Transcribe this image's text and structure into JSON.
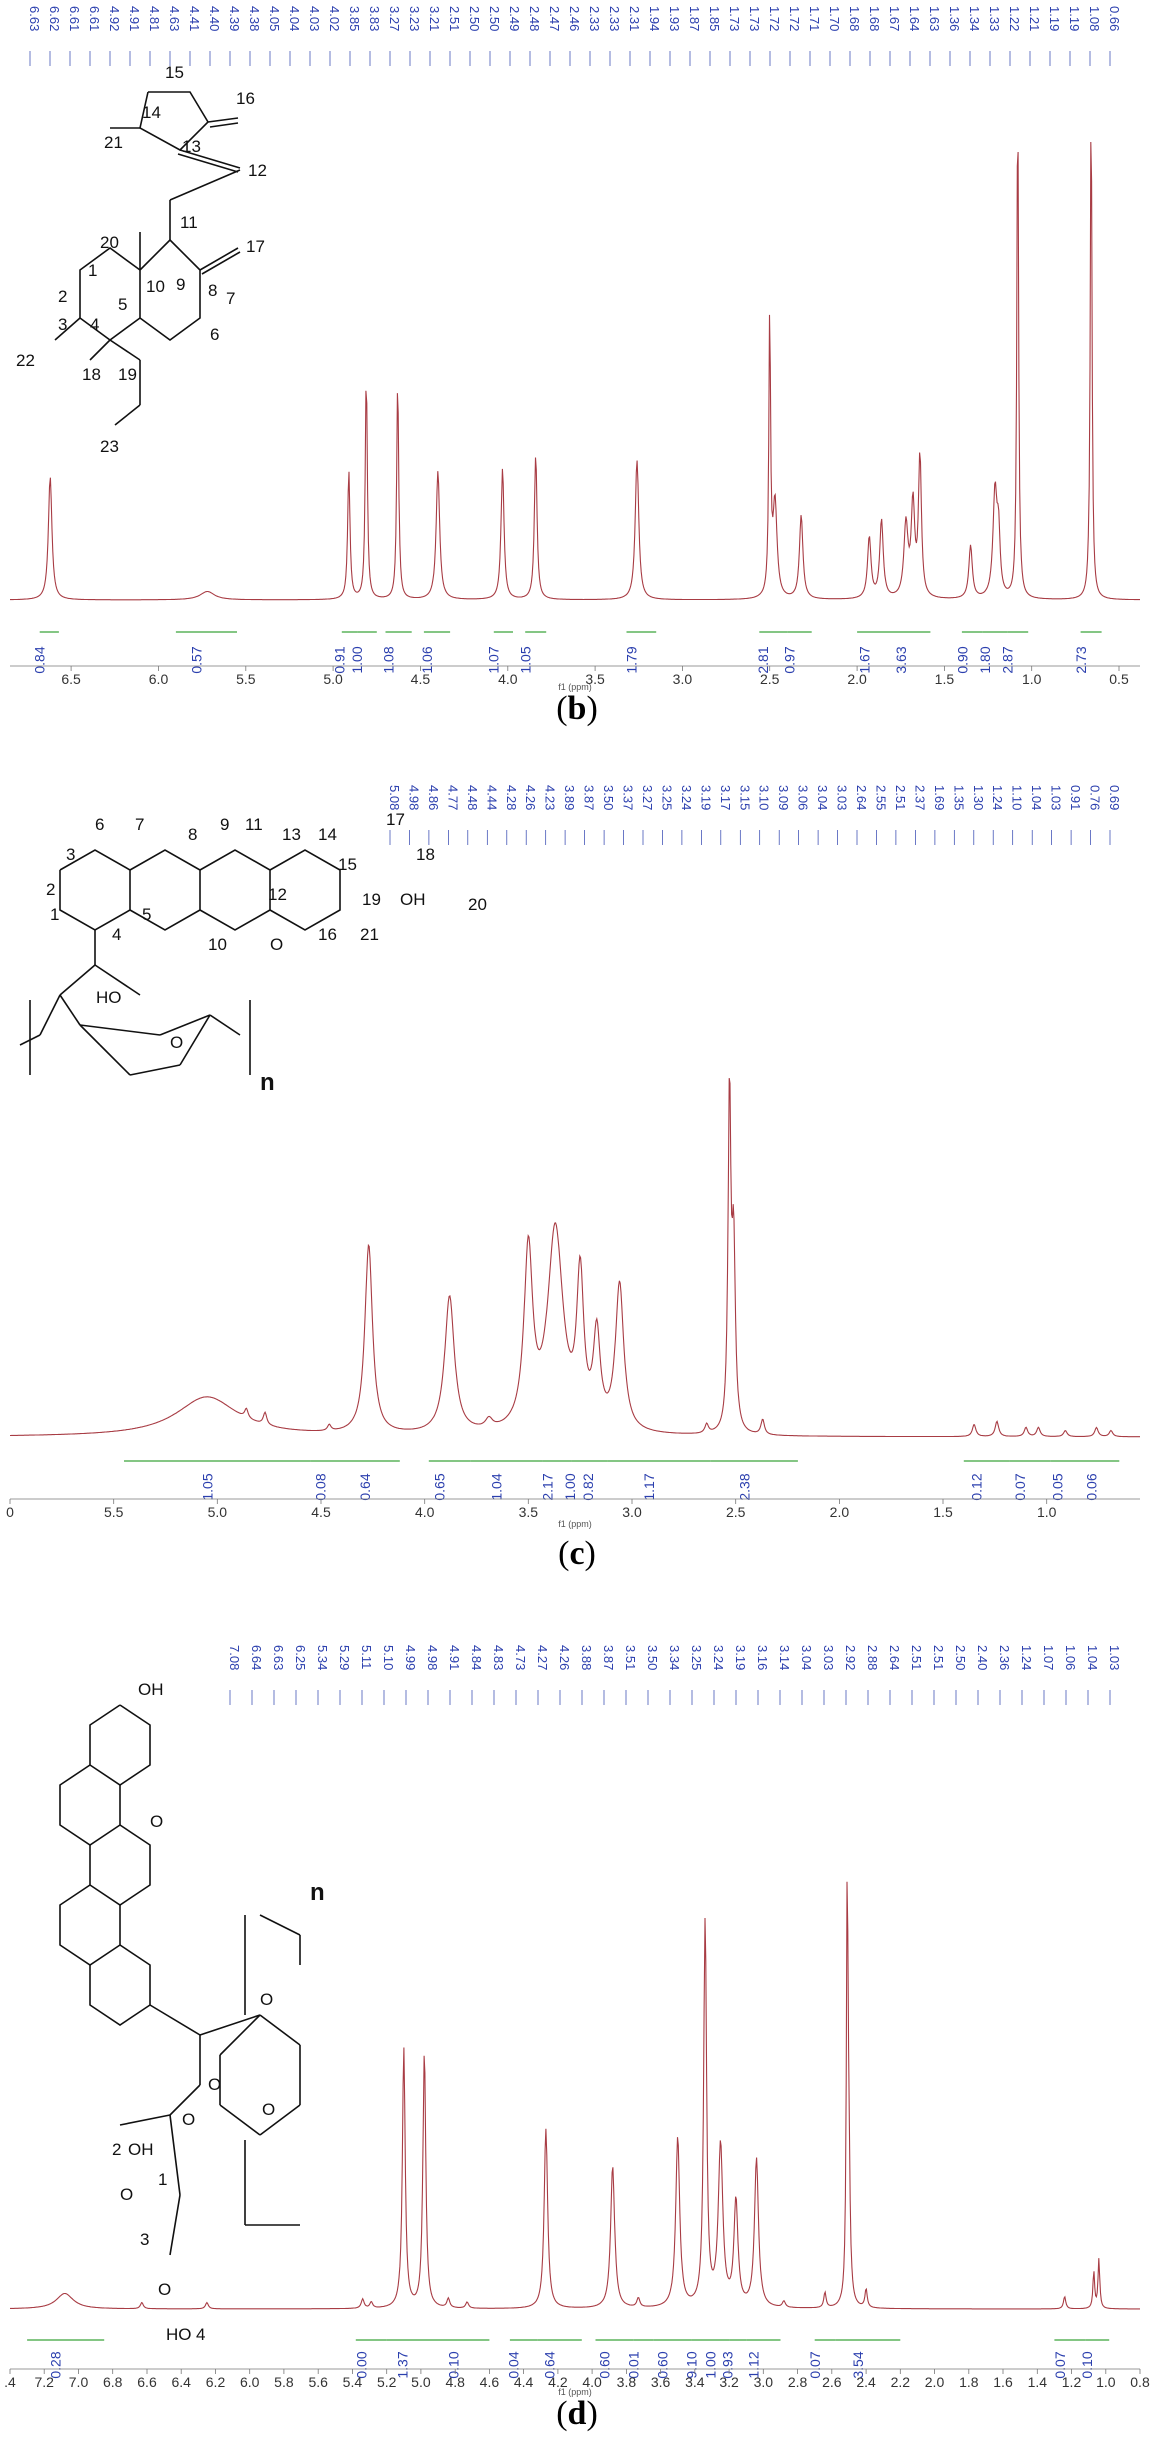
{
  "chart_data": [
    {
      "type": "line",
      "panel": "b",
      "caption_label": "b",
      "xlabel": "f1 (ppm)",
      "xlim": [
        6.85,
        0.38
      ],
      "x_ticks": [
        "6.5",
        "6.0",
        "5.5",
        "5.0",
        "4.5",
        "4.0",
        "3.5",
        "3.0",
        "2.5",
        "2.0",
        "1.5",
        "1.0",
        "0.5"
      ],
      "x_tick_values": [
        6.5,
        6.0,
        5.5,
        5.0,
        4.5,
        4.0,
        3.5,
        3.0,
        2.5,
        2.0,
        1.5,
        1.0,
        0.5
      ],
      "peak_labels": [
        "6.63",
        "6.62",
        "6.61",
        "6.61",
        "4.92",
        "4.91",
        "4.81",
        "4.63",
        "4.41",
        "4.40",
        "4.39",
        "4.38",
        "4.05",
        "4.04",
        "4.03",
        "4.02",
        "3.85",
        "3.83",
        "3.27",
        "3.23",
        "3.21",
        "2.51",
        "2.50",
        "2.50",
        "2.49",
        "2.48",
        "2.47",
        "2.46",
        "2.33",
        "2.33",
        "2.31",
        "1.94",
        "1.93",
        "1.87",
        "1.85",
        "1.73",
        "1.73",
        "1.72",
        "1.72",
        "1.71",
        "1.70",
        "1.68",
        "1.68",
        "1.67",
        "1.64",
        "1.63",
        "1.36",
        "1.34",
        "1.33",
        "1.22",
        "1.21",
        "1.19",
        "1.19",
        "1.08",
        "0.66"
      ],
      "peaks": [
        {
          "ppm": 6.62,
          "h": 0.44,
          "w": 0.012
        },
        {
          "ppm": 5.72,
          "h": 0.03,
          "w": 0.05
        },
        {
          "ppm": 4.91,
          "h": 0.46,
          "w": 0.008
        },
        {
          "ppm": 4.81,
          "h": 0.8,
          "w": 0.007
        },
        {
          "ppm": 4.63,
          "h": 0.78,
          "w": 0.007
        },
        {
          "ppm": 4.4,
          "h": 0.46,
          "w": 0.012
        },
        {
          "ppm": 4.03,
          "h": 0.47,
          "w": 0.01
        },
        {
          "ppm": 3.84,
          "h": 0.52,
          "w": 0.009
        },
        {
          "ppm": 3.26,
          "h": 0.5,
          "w": 0.012
        },
        {
          "ppm": 2.5,
          "h": 1.0,
          "w": 0.006
        },
        {
          "ppm": 2.47,
          "h": 0.34,
          "w": 0.014
        },
        {
          "ppm": 2.32,
          "h": 0.3,
          "w": 0.012
        },
        {
          "ppm": 1.93,
          "h": 0.22,
          "w": 0.012
        },
        {
          "ppm": 1.86,
          "h": 0.28,
          "w": 0.012
        },
        {
          "ppm": 1.72,
          "h": 0.26,
          "w": 0.014
        },
        {
          "ppm": 1.68,
          "h": 0.33,
          "w": 0.012
        },
        {
          "ppm": 1.64,
          "h": 0.5,
          "w": 0.01
        },
        {
          "ppm": 1.35,
          "h": 0.19,
          "w": 0.012
        },
        {
          "ppm": 1.21,
          "h": 0.38,
          "w": 0.014
        },
        {
          "ppm": 1.19,
          "h": 0.2,
          "w": 0.01
        },
        {
          "ppm": 1.08,
          "h": 1.8,
          "w": 0.006
        },
        {
          "ppm": 0.66,
          "h": 1.8,
          "w": 0.006
        }
      ],
      "integrals": [
        {
          "from": 6.68,
          "to": 6.57,
          "value": "0.84"
        },
        {
          "from": 5.9,
          "to": 5.55,
          "value": "0.57"
        },
        {
          "from": 4.95,
          "to": 4.86,
          "value": "0.91"
        },
        {
          "from": 4.86,
          "to": 4.75,
          "value": "1.00"
        },
        {
          "from": 4.7,
          "to": 4.55,
          "value": "1.08"
        },
        {
          "from": 4.48,
          "to": 4.33,
          "value": "1.06"
        },
        {
          "from": 4.08,
          "to": 3.97,
          "value": "1.07"
        },
        {
          "from": 3.9,
          "to": 3.78,
          "value": "1.05"
        },
        {
          "from": 3.32,
          "to": 3.15,
          "value": "1.79"
        },
        {
          "from": 2.56,
          "to": 2.4,
          "value": "2.81"
        },
        {
          "from": 2.4,
          "to": 2.26,
          "value": "0.97"
        },
        {
          "from": 2.0,
          "to": 1.8,
          "value": "1.67"
        },
        {
          "from": 1.8,
          "to": 1.58,
          "value": "3.63"
        },
        {
          "from": 1.4,
          "to": 1.28,
          "value": "0.90"
        },
        {
          "from": 1.28,
          "to": 1.14,
          "value": "1.80"
        },
        {
          "from": 1.14,
          "to": 1.02,
          "value": "2.87"
        },
        {
          "from": 0.72,
          "to": 0.6,
          "value": "2.73"
        }
      ],
      "structure_labels": [
        "15",
        "16",
        "14",
        "13",
        "12",
        "11",
        "20",
        "9",
        "8",
        "17",
        "10",
        "1",
        "2",
        "3",
        "4",
        "5",
        "6",
        "7",
        "18",
        "19",
        "22",
        "23",
        "21"
      ]
    },
    {
      "type": "line",
      "panel": "c",
      "caption_label": "c",
      "xlabel": "f1 (ppm)",
      "xlim": [
        6.0,
        0.55
      ],
      "x_ticks": [
        "0",
        "5.5",
        "5.0",
        "4.5",
        "4.0",
        "3.5",
        "3.0",
        "2.5",
        "2.0",
        "1.5",
        "1.0"
      ],
      "x_tick_values": [
        6.0,
        5.5,
        5.0,
        4.5,
        4.0,
        3.5,
        3.0,
        2.5,
        2.0,
        1.5,
        1.0
      ],
      "peak_labels": [
        "5.08",
        "4.98",
        "4.86",
        "4.77",
        "4.48",
        "4.44",
        "4.28",
        "4.26",
        "4.23",
        "3.89",
        "3.87",
        "3.50",
        "3.37",
        "3.27",
        "3.25",
        "3.24",
        "3.19",
        "3.17",
        "3.15",
        "3.10",
        "3.09",
        "3.06",
        "3.04",
        "3.03",
        "2.64",
        "2.55",
        "2.51",
        "2.37",
        "1.69",
        "1.35",
        "1.30",
        "1.24",
        "1.10",
        "1.04",
        "1.03",
        "0.91",
        "0.76",
        "0.69"
      ],
      "peaks": [
        {
          "ppm": 5.05,
          "h": 0.13,
          "w": 0.18
        },
        {
          "ppm": 4.86,
          "h": 0.03,
          "w": 0.01
        },
        {
          "ppm": 4.77,
          "h": 0.04,
          "w": 0.01
        },
        {
          "ppm": 4.46,
          "h": 0.02,
          "w": 0.01
        },
        {
          "ppm": 4.27,
          "h": 0.62,
          "w": 0.022
        },
        {
          "ppm": 3.88,
          "h": 0.45,
          "w": 0.028
        },
        {
          "ppm": 3.69,
          "h": 0.03,
          "w": 0.02
        },
        {
          "ppm": 3.5,
          "h": 0.58,
          "w": 0.025
        },
        {
          "ppm": 3.37,
          "h": 0.66,
          "w": 0.045
        },
        {
          "ppm": 3.25,
          "h": 0.48,
          "w": 0.02
        },
        {
          "ppm": 3.17,
          "h": 0.3,
          "w": 0.02
        },
        {
          "ppm": 3.06,
          "h": 0.48,
          "w": 0.024
        },
        {
          "ppm": 2.64,
          "h": 0.03,
          "w": 0.01
        },
        {
          "ppm": 2.53,
          "h": 1.1,
          "w": 0.008
        },
        {
          "ppm": 2.51,
          "h": 0.6,
          "w": 0.01
        },
        {
          "ppm": 2.37,
          "h": 0.05,
          "w": 0.01
        },
        {
          "ppm": 1.35,
          "h": 0.04,
          "w": 0.01
        },
        {
          "ppm": 1.24,
          "h": 0.05,
          "w": 0.01
        },
        {
          "ppm": 1.1,
          "h": 0.03,
          "w": 0.01
        },
        {
          "ppm": 1.04,
          "h": 0.03,
          "w": 0.01
        },
        {
          "ppm": 0.91,
          "h": 0.02,
          "w": 0.01
        },
        {
          "ppm": 0.76,
          "h": 0.03,
          "w": 0.01
        },
        {
          "ppm": 0.69,
          "h": 0.02,
          "w": 0.01
        }
      ],
      "integrals": [
        {
          "from": 5.45,
          "to": 4.55,
          "value": "1.05"
        },
        {
          "from": 4.55,
          "to": 4.36,
          "value": "0.08"
        },
        {
          "from": 4.36,
          "to": 4.12,
          "value": "0.64"
        },
        {
          "from": 3.98,
          "to": 3.78,
          "value": "0.65"
        },
        {
          "from": 3.78,
          "to": 3.43,
          "value": "1.04"
        },
        {
          "from": 3.43,
          "to": 3.29,
          "value": "2.17"
        },
        {
          "from": 3.29,
          "to": 3.21,
          "value": "1.00"
        },
        {
          "from": 3.21,
          "to": 3.12,
          "value": "0.82"
        },
        {
          "from": 3.12,
          "to": 2.62,
          "value": "1.17"
        },
        {
          "from": 2.62,
          "to": 2.2,
          "value": "2.38"
        },
        {
          "from": 1.4,
          "to": 1.18,
          "value": "0.12"
        },
        {
          "from": 1.18,
          "to": 0.98,
          "value": "0.07"
        },
        {
          "from": 0.98,
          "to": 0.82,
          "value": "0.05"
        },
        {
          "from": 0.82,
          "to": 0.65,
          "value": "0.06"
        }
      ],
      "structure_labels": [
        "6",
        "7",
        "8",
        "9",
        "11",
        "13",
        "14",
        "17",
        "18",
        "3",
        "15",
        "2",
        "12",
        "19",
        "OH",
        "20",
        "1",
        "5",
        "16",
        "21",
        "4",
        "10",
        "O",
        "HO",
        "O",
        "n"
      ]
    },
    {
      "type": "line",
      "panel": "d",
      "caption_label": "d",
      "xlabel": "f1 (ppm)",
      "xlim": [
        7.4,
        0.8
      ],
      "x_ticks": [
        ".4",
        "7.2",
        "7.0",
        "6.8",
        "6.6",
        "6.4",
        "6.2",
        "6.0",
        "5.8",
        "5.6",
        "5.4",
        "5.2",
        "5.0",
        "4.8",
        "4.6",
        "4.4",
        "4.2",
        "4.0",
        "3.8",
        "3.6",
        "3.4",
        "3.2",
        "3.0",
        "2.8",
        "2.6",
        "2.4",
        "2.2",
        "2.0",
        "1.8",
        "1.6",
        "1.4",
        "1.2",
        "1.0",
        "0.8"
      ],
      "x_tick_values": [
        7.4,
        7.2,
        7.0,
        6.8,
        6.6,
        6.4,
        6.2,
        6.0,
        5.8,
        5.6,
        5.4,
        5.2,
        5.0,
        4.8,
        4.6,
        4.4,
        4.2,
        4.0,
        3.8,
        3.6,
        3.4,
        3.2,
        3.0,
        2.8,
        2.6,
        2.4,
        2.2,
        2.0,
        1.8,
        1.6,
        1.4,
        1.2,
        1.0,
        0.8
      ],
      "peak_labels": [
        "7.08",
        "6.64",
        "6.63",
        "6.25",
        "5.34",
        "5.29",
        "5.11",
        "5.10",
        "4.99",
        "4.98",
        "4.91",
        "4.84",
        "4.83",
        "4.73",
        "4.27",
        "4.26",
        "3.88",
        "3.87",
        "3.51",
        "3.50",
        "3.34",
        "3.25",
        "3.24",
        "3.19",
        "3.16",
        "3.14",
        "3.04",
        "3.03",
        "2.92",
        "2.88",
        "2.64",
        "2.51",
        "2.51",
        "2.50",
        "2.40",
        "2.36",
        "1.24",
        "1.07",
        "1.06",
        "1.04",
        "1.03"
      ],
      "peaks": [
        {
          "ppm": 7.08,
          "h": 0.05,
          "w": 0.06
        },
        {
          "ppm": 6.63,
          "h": 0.02,
          "w": 0.01
        },
        {
          "ppm": 6.25,
          "h": 0.02,
          "w": 0.01
        },
        {
          "ppm": 5.34,
          "h": 0.03,
          "w": 0.01
        },
        {
          "ppm": 5.29,
          "h": 0.02,
          "w": 0.01
        },
        {
          "ppm": 5.1,
          "h": 0.84,
          "w": 0.01
        },
        {
          "ppm": 4.98,
          "h": 0.83,
          "w": 0.01
        },
        {
          "ppm": 4.84,
          "h": 0.03,
          "w": 0.01
        },
        {
          "ppm": 4.73,
          "h": 0.02,
          "w": 0.01
        },
        {
          "ppm": 4.27,
          "h": 0.58,
          "w": 0.012
        },
        {
          "ppm": 3.88,
          "h": 0.46,
          "w": 0.014
        },
        {
          "ppm": 3.73,
          "h": 0.03,
          "w": 0.01
        },
        {
          "ppm": 3.5,
          "h": 0.55,
          "w": 0.014
        },
        {
          "ppm": 3.34,
          "h": 1.25,
          "w": 0.01
        },
        {
          "ppm": 3.25,
          "h": 0.52,
          "w": 0.016
        },
        {
          "ppm": 3.16,
          "h": 0.34,
          "w": 0.014
        },
        {
          "ppm": 3.04,
          "h": 0.48,
          "w": 0.014
        },
        {
          "ppm": 2.88,
          "h": 0.02,
          "w": 0.01
        },
        {
          "ppm": 2.64,
          "h": 0.05,
          "w": 0.008
        },
        {
          "ppm": 2.51,
          "h": 1.3,
          "w": 0.006
        },
        {
          "ppm": 2.5,
          "h": 0.4,
          "w": 0.008
        },
        {
          "ppm": 2.4,
          "h": 0.06,
          "w": 0.008
        },
        {
          "ppm": 1.24,
          "h": 0.04,
          "w": 0.008
        },
        {
          "ppm": 1.07,
          "h": 0.12,
          "w": 0.006
        },
        {
          "ppm": 1.04,
          "h": 0.16,
          "w": 0.006
        }
      ],
      "integrals": [
        {
          "from": 7.3,
          "to": 6.85,
          "value": "0.28"
        },
        {
          "from": 5.38,
          "to": 5.2,
          "value": "0.00"
        },
        {
          "from": 5.2,
          "to": 4.9,
          "value": "1.37"
        },
        {
          "from": 4.9,
          "to": 4.6,
          "value": "0.10"
        },
        {
          "from": 4.48,
          "to": 4.32,
          "value": "0.04"
        },
        {
          "from": 4.32,
          "to": 4.06,
          "value": "0.64"
        },
        {
          "from": 3.98,
          "to": 3.76,
          "value": "0.60"
        },
        {
          "from": 3.76,
          "to": 3.64,
          "value": "0.01"
        },
        {
          "from": 3.64,
          "to": 3.42,
          "value": "0.60"
        },
        {
          "from": 3.42,
          "to": 3.3,
          "value": "9.10"
        },
        {
          "from": 3.3,
          "to": 3.2,
          "value": "1.00"
        },
        {
          "from": 3.2,
          "to": 3.1,
          "value": "0.93"
        },
        {
          "from": 3.1,
          "to": 2.9,
          "value": "1.12"
        },
        {
          "from": 2.7,
          "to": 2.58,
          "value": "0.07"
        },
        {
          "from": 2.58,
          "to": 2.2,
          "value": "3.54"
        },
        {
          "from": 1.3,
          "to": 1.12,
          "value": "0.07"
        },
        {
          "from": 1.12,
          "to": 0.98,
          "value": "0.10"
        }
      ],
      "structure_labels": [
        "OH",
        "O",
        "n",
        "O",
        "O",
        "O",
        "O",
        "2",
        "OH",
        "1",
        "O",
        "3",
        "O",
        "HO",
        "4"
      ]
    }
  ]
}
